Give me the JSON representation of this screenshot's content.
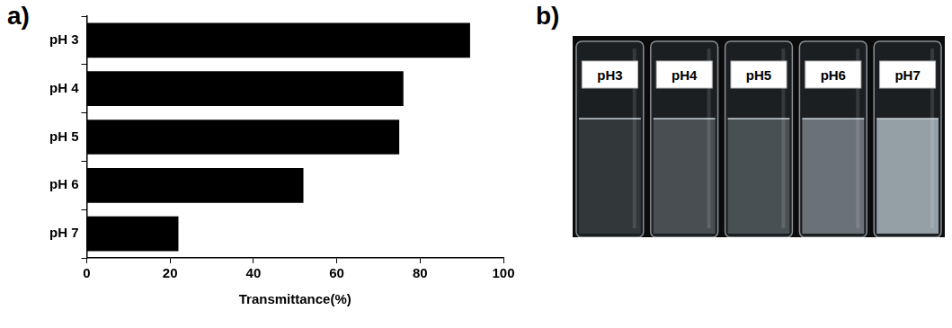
{
  "chart_data": {
    "type": "bar",
    "panel": "a)",
    "orientation": "horizontal",
    "categories": [
      "pH 3",
      "pH 4",
      "pH 5",
      "pH 6",
      "pH 7"
    ],
    "values": [
      92,
      76,
      75,
      52,
      22
    ],
    "color": "#000000",
    "x_label": "Transmittance(%)",
    "xlim": [
      0,
      100
    ],
    "xticks": [
      0,
      20,
      40,
      60,
      80,
      100
    ],
    "grid": false,
    "legend": false
  },
  "photo": {
    "panel": "b)",
    "labels": [
      "pH3",
      "pH4",
      "pH5",
      "pH6",
      "pH7"
    ]
  }
}
